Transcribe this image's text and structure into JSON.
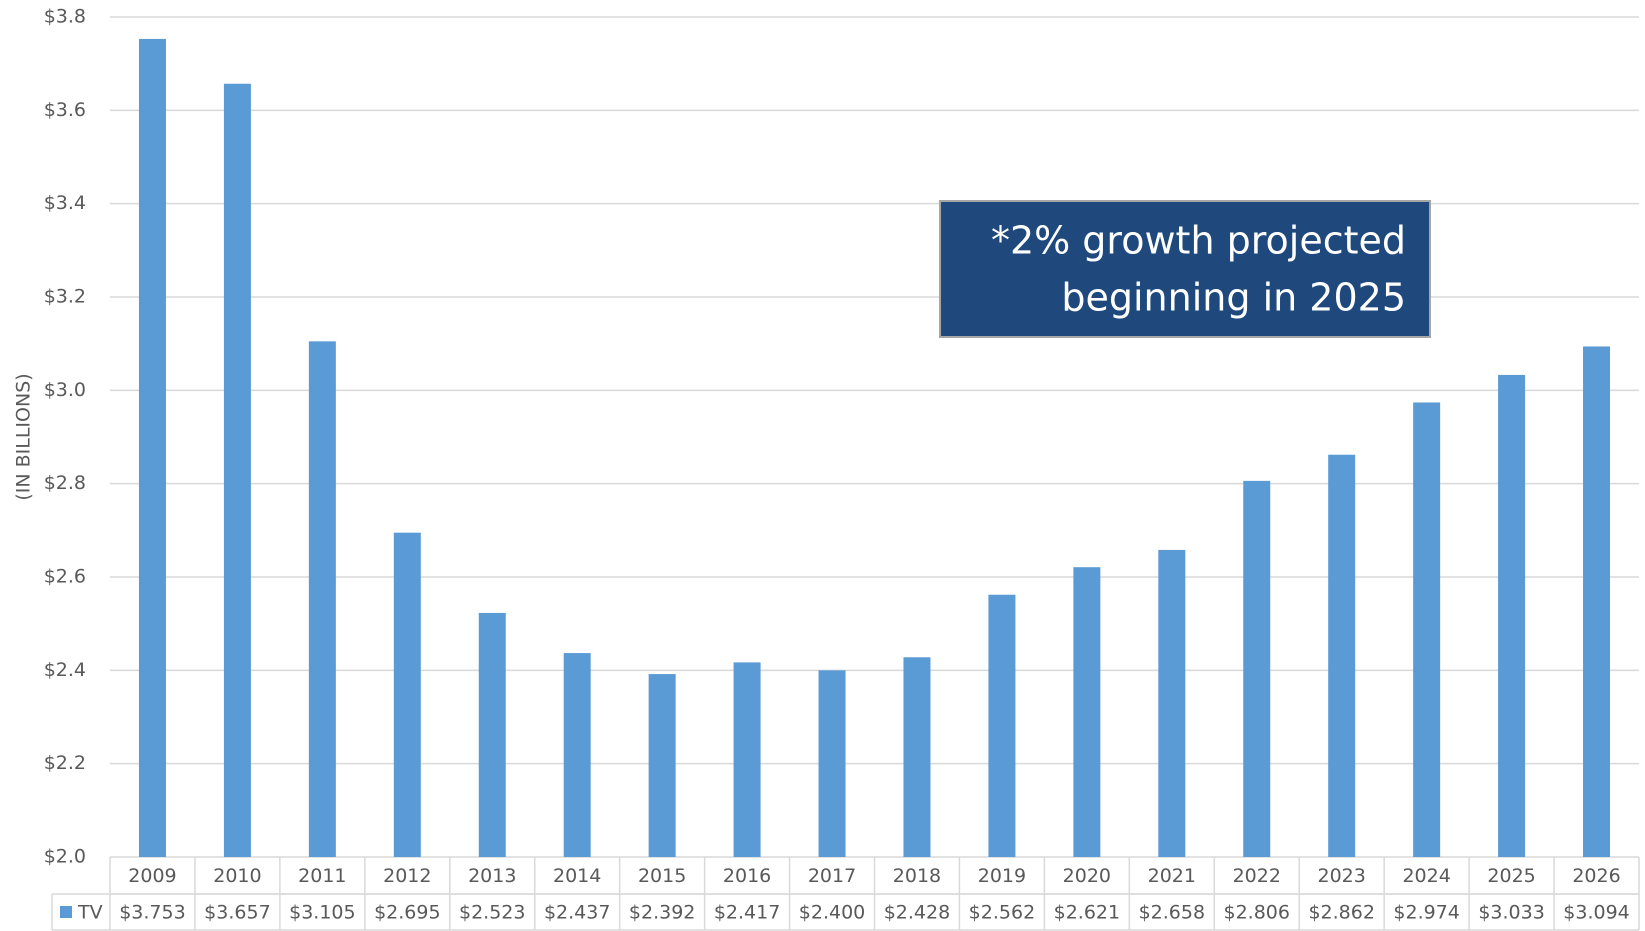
{
  "chart_data": {
    "type": "bar",
    "y_axis_label": "(IN BILLIONS)",
    "annotation": [
      "*2% growth projected",
      "beginning in 2025"
    ],
    "categories": [
      "2009",
      "2010",
      "2011",
      "2012",
      "2013",
      "2014",
      "2015",
      "2016",
      "2017",
      "2018",
      "2019",
      "2020",
      "2021",
      "2022",
      "2023",
      "2024",
      "2025",
      "2026"
    ],
    "series": [
      {
        "name": "TV",
        "color": "#5b9bd5",
        "values": [
          3.753,
          3.657,
          3.105,
          2.695,
          2.523,
          2.437,
          2.392,
          2.417,
          2.4,
          2.428,
          2.562,
          2.621,
          2.658,
          2.806,
          2.862,
          2.974,
          3.033,
          3.094
        ],
        "value_labels": [
          "$3.753",
          "$3.657",
          "$3.105",
          "$2.695",
          "$2.523",
          "$2.437",
          "$2.392",
          "$2.417",
          "$2.400",
          "$2.428",
          "$2.562",
          "$2.621",
          "$2.658",
          "$2.806",
          "$2.862",
          "$2.974",
          "$3.033",
          "$3.094"
        ]
      }
    ],
    "ylim": [
      2.0,
      3.8
    ],
    "yticks": [
      {
        "value": 2.0,
        "label": "$2.0"
      },
      {
        "value": 2.2,
        "label": "$2.2"
      },
      {
        "value": 2.4,
        "label": "$2.4"
      },
      {
        "value": 2.6,
        "label": "$2.6"
      },
      {
        "value": 2.8,
        "label": "$2.8"
      },
      {
        "value": 3.0,
        "label": "$3.0"
      },
      {
        "value": 3.2,
        "label": "$3.2"
      },
      {
        "value": 3.4,
        "label": "$3.4"
      },
      {
        "value": 3.6,
        "label": "$3.6"
      },
      {
        "value": 3.8,
        "label": "$3.8"
      }
    ],
    "grid": true,
    "legend": "data-table"
  }
}
